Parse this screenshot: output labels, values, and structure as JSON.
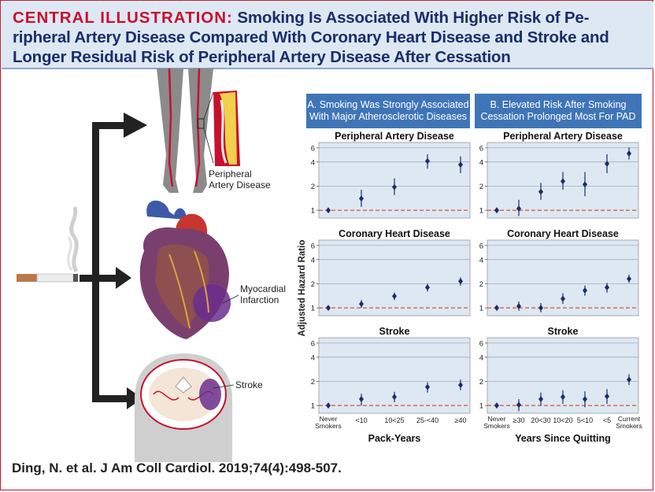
{
  "title": {
    "lead": "CENTRAL ILLUSTRATION:",
    "line1": "Smoking Is Associated With Higher Risk of Pe-",
    "line2": "ripheral Artery Disease Compared With Coronary Heart Disease and Stroke and",
    "line3": "Longer Residual Risk of Peripheral Artery Disease After Cessation"
  },
  "labels": {
    "pad": [
      "Peripheral",
      "Artery Disease"
    ],
    "mi": [
      "Myocardial",
      "Infarction"
    ],
    "stroke": "Stroke"
  },
  "panel_a_heading": [
    "A. Smoking Was Strongly Associated",
    "With Major Atherosclerotic Diseases"
  ],
  "panel_b_heading": [
    "B. Elevated Risk After Smoking",
    "Cessation Prolonged Most For PAD"
  ],
  "y_axis_label": "Adjusted Hazard Ratio",
  "citation": "Ding, N. et al. J Am Coll Cardiol. 2019;74(4):498-507.",
  "colors": {
    "title_red": "#c8102e",
    "title_navy": "#1b2d6b",
    "panel_blue": "#3f75b7",
    "plot_bg": "#dde8f3",
    "ref_line": "#d9532b",
    "marker": "#1b2d6b"
  },
  "chart_data": [
    {
      "type": "scatter",
      "title": "Peripheral Artery Disease",
      "scale": "log",
      "ylim": [
        0.8,
        7
      ],
      "yticks": [
        "1",
        "2",
        "4",
        "6"
      ],
      "xlabel": "Pack-Years",
      "categories": [
        "Never Smokers",
        "<10",
        "10<25",
        "25-<40",
        "≥40"
      ],
      "values": [
        1.0,
        1.4,
        1.95,
        4.1,
        3.7
      ],
      "lower": [
        1.0,
        1.1,
        1.55,
        3.3,
        2.9
      ],
      "upper": [
        1.0,
        1.8,
        2.5,
        5.0,
        4.7
      ]
    },
    {
      "type": "scatter",
      "title": "Coronary Heart Disease",
      "scale": "log",
      "ylim": [
        0.8,
        7
      ],
      "yticks": [
        "1",
        "2",
        "4",
        "6"
      ],
      "xlabel": "Pack-Years",
      "categories": [
        "Never Smokers",
        "<10",
        "10<25",
        "25-<40",
        "≥40"
      ],
      "values": [
        1.0,
        1.12,
        1.4,
        1.8,
        2.15
      ],
      "lower": [
        1.0,
        1.0,
        1.25,
        1.6,
        1.9
      ],
      "upper": [
        1.0,
        1.25,
        1.55,
        2.0,
        2.4
      ]
    },
    {
      "type": "scatter",
      "title": "Stroke",
      "scale": "log",
      "ylim": [
        0.8,
        7
      ],
      "yticks": [
        "1",
        "2",
        "4",
        "6"
      ],
      "xlabel": "Pack-Years",
      "categories": [
        "Never Smokers",
        "<10",
        "10<25",
        "25-<40",
        "≥40"
      ],
      "values": [
        1.0,
        1.2,
        1.28,
        1.7,
        1.8
      ],
      "lower": [
        1.0,
        1.0,
        1.1,
        1.45,
        1.55
      ],
      "upper": [
        1.0,
        1.4,
        1.48,
        1.95,
        2.1
      ]
    },
    {
      "type": "scatter",
      "title": "Peripheral Artery Disease",
      "scale": "log",
      "ylim": [
        0.8,
        7
      ],
      "yticks": [
        "1",
        "2",
        "4",
        "6"
      ],
      "xlabel": "Years Since Quitting",
      "categories": [
        "Never Smokers",
        "≥30",
        "20<30",
        "10<20",
        "5<10",
        "<5",
        "Current Smokers"
      ],
      "values": [
        1.0,
        1.05,
        1.7,
        2.3,
        2.1,
        3.8,
        5.1
      ],
      "lower": [
        1.0,
        0.85,
        1.35,
        1.8,
        1.5,
        2.9,
        4.3
      ],
      "upper": [
        1.0,
        1.35,
        2.2,
        3.0,
        3.0,
        5.0,
        6.1
      ]
    },
    {
      "type": "scatter",
      "title": "Coronary Heart Disease",
      "scale": "log",
      "ylim": [
        0.8,
        7
      ],
      "yticks": [
        "1",
        "2",
        "4",
        "6"
      ],
      "xlabel": "Years Since Quitting",
      "categories": [
        "Never Smokers",
        "≥30",
        "20<30",
        "10<20",
        "5<10",
        "<5",
        "Current Smokers"
      ],
      "values": [
        1.0,
        1.05,
        1.0,
        1.3,
        1.65,
        1.8,
        2.3
      ],
      "lower": [
        1.0,
        0.92,
        0.88,
        1.12,
        1.42,
        1.55,
        2.05
      ],
      "upper": [
        1.0,
        1.2,
        1.15,
        1.52,
        1.9,
        2.05,
        2.6
      ]
    },
    {
      "type": "scatter",
      "title": "Stroke",
      "scale": "log",
      "ylim": [
        0.8,
        7
      ],
      "yticks": [
        "1",
        "2",
        "4",
        "6"
      ],
      "xlabel": "Years Since Quitting",
      "categories": [
        "Never Smokers",
        "≥30",
        "20<30",
        "10<20",
        "5<10",
        "<5",
        "Current Smokers"
      ],
      "values": [
        1.0,
        1.02,
        1.2,
        1.28,
        1.2,
        1.3,
        2.1
      ],
      "lower": [
        1.0,
        0.85,
        1.0,
        1.05,
        0.95,
        1.05,
        1.8
      ],
      "upper": [
        1.0,
        1.2,
        1.45,
        1.55,
        1.5,
        1.6,
        2.45
      ]
    }
  ]
}
